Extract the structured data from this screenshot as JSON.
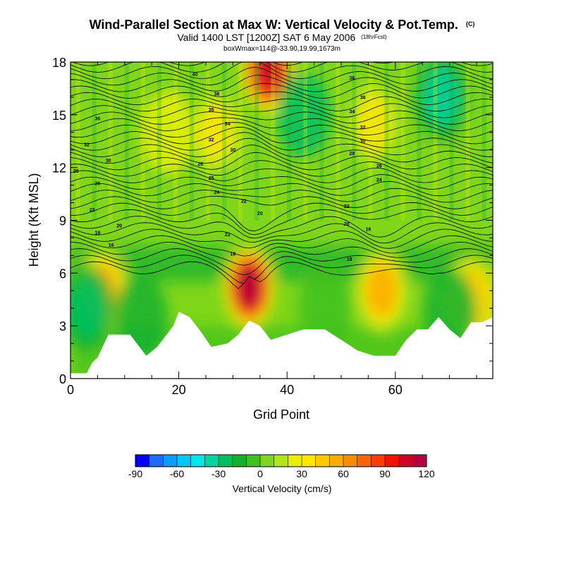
{
  "chart_data": {
    "type": "heatmap",
    "title": "Wind-Parallel Section at Max W: Vertical Velocity & Pot.Temp.",
    "title_mark": "(C)",
    "subtitle_main": "Valid 1400 LST [1200Z] SAT 6 May 2006",
    "subtitle_small": "(18hrFcst)",
    "subtitle2": "boxWmax=114@-33.90,19.99,1673m",
    "xlabel": "Grid Point",
    "ylabel": "Height (Kft MSL)",
    "xlim": [
      0,
      78
    ],
    "ylim": [
      0,
      18
    ],
    "x_ticks": [
      "0",
      "20",
      "40",
      "60"
    ],
    "y_ticks": [
      "0",
      "3",
      "6",
      "9",
      "12",
      "15",
      "18"
    ],
    "colorbar": {
      "label": "Vertical Velocity (cm/s)",
      "tick_labels": [
        "-90",
        "-60",
        "-30",
        "0",
        "30",
        "60",
        "90",
        "120"
      ],
      "min": -90,
      "max": 120,
      "colors": [
        "#0000ff",
        "#1d6bff",
        "#0a9cff",
        "#00c8ff",
        "#00e8e8",
        "#00d4a0",
        "#00c060",
        "#14b030",
        "#40c020",
        "#7fd61a",
        "#b0e61a",
        "#e6f000",
        "#ffe600",
        "#ffc800",
        "#ffaa00",
        "#ff8c00",
        "#ff6400",
        "#ff3c00",
        "#f01400",
        "#d20028",
        "#b4003c"
      ]
    },
    "vertical_velocity_peaks": [
      {
        "x": 33,
        "y": 5.2,
        "value": 114
      },
      {
        "x": 36.5,
        "y": 17.5,
        "value": 100
      },
      {
        "x": 6,
        "y": 5,
        "value": 55
      },
      {
        "x": 57.5,
        "y": 5,
        "value": 55
      },
      {
        "x": 74,
        "y": 4.5,
        "value": 45
      },
      {
        "x": 56,
        "y": 14.5,
        "value": 30
      },
      {
        "x": 27,
        "y": 14,
        "value": 30
      },
      {
        "x": 18,
        "y": 14,
        "value": 20
      },
      {
        "x": 3,
        "y": 4,
        "value": -30
      },
      {
        "x": 68.5,
        "y": 16,
        "value": -35
      },
      {
        "x": 43,
        "y": 15,
        "value": -25
      },
      {
        "x": 13,
        "y": 3.5,
        "value": -15
      },
      {
        "x": 47,
        "y": 4,
        "value": -10
      },
      {
        "x": 70,
        "y": 3.8,
        "value": -12
      }
    ],
    "terrain": [
      {
        "x": 0,
        "y": 0.3
      },
      {
        "x": 3,
        "y": 0.3
      },
      {
        "x": 4,
        "y": 0.9
      },
      {
        "x": 5,
        "y": 1.2
      },
      {
        "x": 7,
        "y": 2.5
      },
      {
        "x": 11,
        "y": 2.5
      },
      {
        "x": 13,
        "y": 1.7
      },
      {
        "x": 14,
        "y": 1.3
      },
      {
        "x": 16,
        "y": 1.8
      },
      {
        "x": 17,
        "y": 2.2
      },
      {
        "x": 19,
        "y": 3.0
      },
      {
        "x": 20,
        "y": 3.8
      },
      {
        "x": 22,
        "y": 3.5
      },
      {
        "x": 24,
        "y": 2.7
      },
      {
        "x": 26,
        "y": 1.8
      },
      {
        "x": 29,
        "y": 2.0
      },
      {
        "x": 31,
        "y": 2.5
      },
      {
        "x": 33,
        "y": 3.3
      },
      {
        "x": 35,
        "y": 3.0
      },
      {
        "x": 37,
        "y": 2.2
      },
      {
        "x": 40,
        "y": 2.5
      },
      {
        "x": 43,
        "y": 2.8
      },
      {
        "x": 47,
        "y": 2.8
      },
      {
        "x": 50,
        "y": 2.2
      },
      {
        "x": 53,
        "y": 1.6
      },
      {
        "x": 56,
        "y": 1.3
      },
      {
        "x": 60,
        "y": 1.3
      },
      {
        "x": 62,
        "y": 2.2
      },
      {
        "x": 64,
        "y": 2.8
      },
      {
        "x": 66,
        "y": 2.8
      },
      {
        "x": 68,
        "y": 3.5
      },
      {
        "x": 70,
        "y": 2.8
      },
      {
        "x": 72,
        "y": 2.3
      },
      {
        "x": 74,
        "y": 3.2
      },
      {
        "x": 76,
        "y": 3.2
      },
      {
        "x": 78,
        "y": 3.5
      }
    ],
    "theta_contour_labels": [
      {
        "x": 7.5,
        "y": 7.5,
        "text": "16"
      },
      {
        "x": 5,
        "y": 8.2,
        "text": "18"
      },
      {
        "x": 9,
        "y": 8.6,
        "text": "20"
      },
      {
        "x": 4,
        "y": 9.5,
        "text": "22"
      },
      {
        "x": 5,
        "y": 11,
        "text": "26"
      },
      {
        "x": 1,
        "y": 11.7,
        "text": "28"
      },
      {
        "x": 7,
        "y": 12.3,
        "text": "30"
      },
      {
        "x": 3,
        "y": 13.2,
        "text": "32"
      },
      {
        "x": 5,
        "y": 14.7,
        "text": "36"
      },
      {
        "x": 30,
        "y": 7,
        "text": "18"
      },
      {
        "x": 29,
        "y": 8.1,
        "text": "22"
      },
      {
        "x": 32,
        "y": 10,
        "text": "22"
      },
      {
        "x": 35,
        "y": 9.3,
        "text": "20"
      },
      {
        "x": 27,
        "y": 10.5,
        "text": "24"
      },
      {
        "x": 26,
        "y": 11.3,
        "text": "25"
      },
      {
        "x": 24,
        "y": 12.1,
        "text": "26"
      },
      {
        "x": 30,
        "y": 12.9,
        "text": "30"
      },
      {
        "x": 26,
        "y": 13.5,
        "text": "32"
      },
      {
        "x": 29,
        "y": 14.4,
        "text": "34"
      },
      {
        "x": 26,
        "y": 15.2,
        "text": "35"
      },
      {
        "x": 27,
        "y": 16.1,
        "text": "38"
      },
      {
        "x": 23,
        "y": 17.2,
        "text": "40"
      },
      {
        "x": 51.5,
        "y": 6.7,
        "text": "18"
      },
      {
        "x": 55,
        "y": 8.4,
        "text": "16"
      },
      {
        "x": 51,
        "y": 8.7,
        "text": "20"
      },
      {
        "x": 51,
        "y": 9.7,
        "text": "22"
      },
      {
        "x": 57,
        "y": 11.2,
        "text": "24"
      },
      {
        "x": 57,
        "y": 12,
        "text": "26"
      },
      {
        "x": 52,
        "y": 12.7,
        "text": "28"
      },
      {
        "x": 54,
        "y": 13.4,
        "text": "30"
      },
      {
        "x": 54,
        "y": 14.2,
        "text": "32"
      },
      {
        "x": 52,
        "y": 15.1,
        "text": "34"
      },
      {
        "x": 54,
        "y": 15.9,
        "text": "36"
      },
      {
        "x": 52,
        "y": 17,
        "text": "36"
      }
    ],
    "grid": false,
    "legend": "colorbar-bottom"
  }
}
